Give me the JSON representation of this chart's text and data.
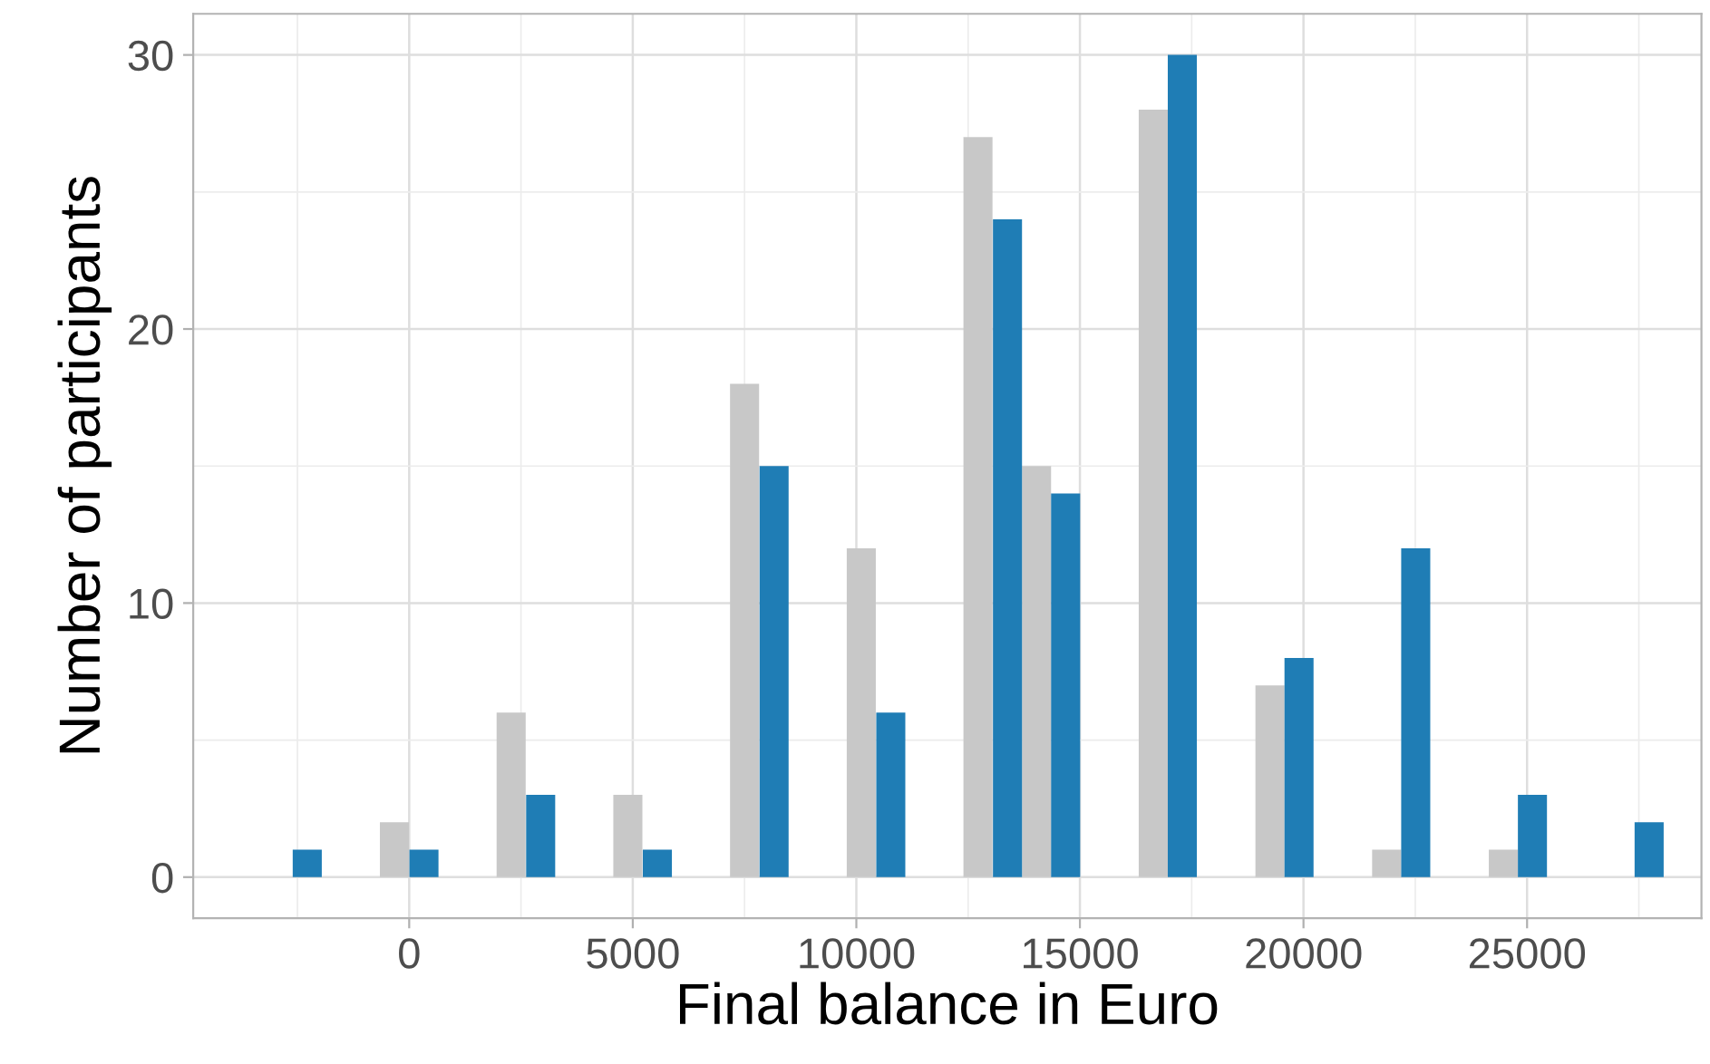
{
  "chart_data": {
    "type": "bar",
    "xlabel": "Final balance in Euro",
    "ylabel": "Number of participants",
    "series": [
      {
        "color": "#c8c8c8",
        "x": [
          -330,
          2280,
          4890,
          7500,
          10110,
          12720,
          14030,
          16640,
          19250,
          21860,
          24470
        ],
        "values": [
          2,
          6,
          3,
          18,
          12,
          27,
          15,
          28,
          7,
          1,
          1
        ]
      },
      {
        "color": "#1f7db5",
        "x": [
          -2280,
          330,
          2940,
          5550,
          8160,
          10770,
          13380,
          14680,
          17290,
          19900,
          22510,
          25120,
          27730
        ],
        "values": [
          1,
          1,
          3,
          1,
          15,
          6,
          24,
          14,
          30,
          8,
          12,
          3,
          2
        ]
      }
    ],
    "xlim": [
      -4830,
      28900
    ],
    "xticks": [
      0,
      5000,
      10000,
      15000,
      20000,
      25000
    ],
    "ylim": [
      -1.5,
      31.5
    ],
    "yticks": [
      0,
      10,
      20,
      30
    ],
    "grid": true
  }
}
